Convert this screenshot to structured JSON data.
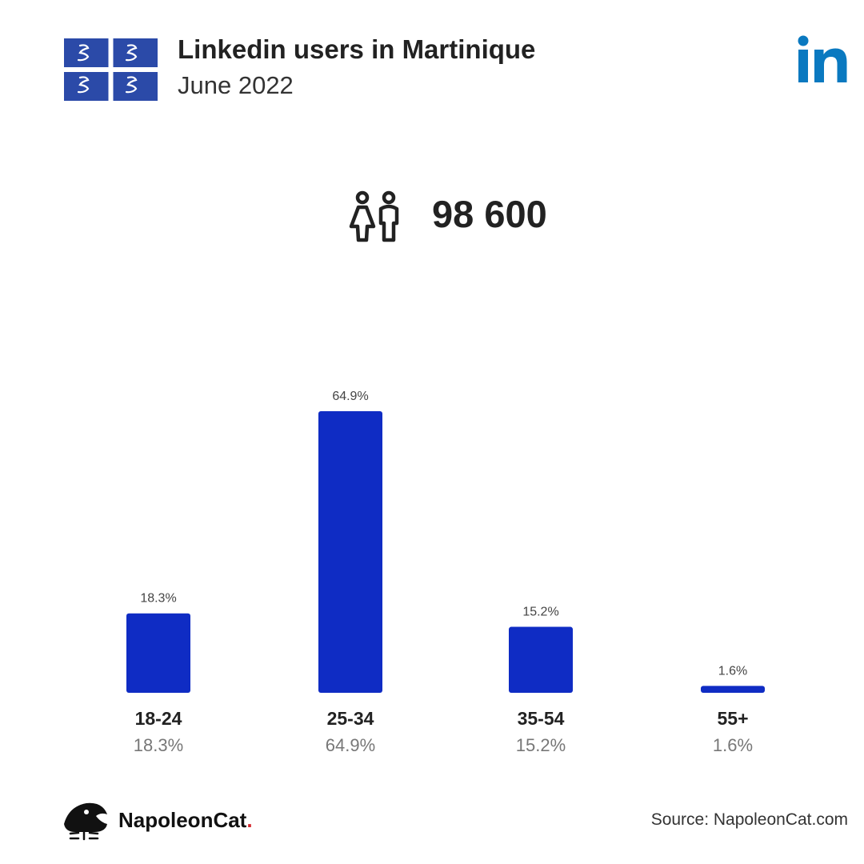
{
  "header": {
    "title": "Linkedin users in Martinique",
    "subtitle": "June 2022"
  },
  "icons": {
    "flag": "martinique-flag-icon",
    "network": "linkedin-logo-icon",
    "users": "users-icon"
  },
  "colors": {
    "bar": "#0f2cc4",
    "linkedin": "#0a79c0",
    "flag_blue": "#2b4aa8",
    "brand_dot": "#d4262c"
  },
  "total_users": "98 600",
  "chart_data": {
    "type": "bar",
    "categories": [
      "18-24",
      "25-34",
      "35-54",
      "55+"
    ],
    "values": [
      18.3,
      64.9,
      15.2,
      1.6
    ],
    "value_labels": [
      "18.3%",
      "64.9%",
      "15.2%",
      "1.6%"
    ],
    "unit": "%",
    "ylim": [
      0,
      64.9
    ],
    "grid": false,
    "title": "",
    "xlabel": "",
    "ylabel": ""
  },
  "footer": {
    "brand_name": "NapoleonCat",
    "brand_dot": ".",
    "source": "Source: NapoleonCat.com"
  }
}
